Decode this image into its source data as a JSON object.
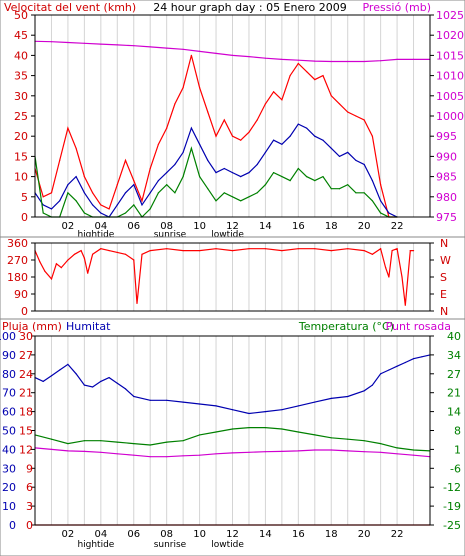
{
  "colors": {
    "background": "#ffffff",
    "frame": "#000000",
    "grid": "#d4d4d4",
    "wind_max": "#ff0000",
    "wind_avg": "#0000b0",
    "wind_min": "#008000",
    "pressure": "#d000d0",
    "direction": "#ff0000",
    "humidity": "#0000b0",
    "temperature": "#008000",
    "dewpoint": "#d000d0",
    "rain": "#ff0000",
    "label_red": "#d00000",
    "label_blue": "#0000b0",
    "label_green": "#008000",
    "label_magenta": "#d000d0"
  },
  "chart_data": [
    {
      "id": "wind",
      "type": "line",
      "title": "24 hour graph day : 05 Enero 2009",
      "ylabel_left": "Velocitat del vent (kmh)",
      "ylabel_right": "Pressió (mb)",
      "ylim_left": [
        0,
        50
      ],
      "yticks_left": [
        0,
        5,
        10,
        15,
        20,
        25,
        30,
        35,
        40,
        45,
        50
      ],
      "ylim_right": [
        975,
        1025
      ],
      "yticks_right": [
        975,
        980,
        985,
        990,
        995,
        1000,
        1005,
        1010,
        1015,
        1020,
        1025
      ],
      "xlim": [
        0,
        24
      ],
      "xticks": [
        {
          "x": 2,
          "label": "02"
        },
        {
          "x": 4,
          "label": "04"
        },
        {
          "x": 6,
          "label": "06"
        },
        {
          "x": 8,
          "label": "08"
        },
        {
          "x": 10,
          "label": "10"
        },
        {
          "x": 12,
          "label": "12"
        },
        {
          "x": 14,
          "label": "14"
        },
        {
          "x": 16,
          "label": "16"
        },
        {
          "x": 18,
          "label": "18"
        },
        {
          "x": 20,
          "label": "20"
        },
        {
          "x": 22,
          "label": "22"
        }
      ],
      "events": [
        {
          "x": 3.7,
          "label": "hightide"
        },
        {
          "x": 8.2,
          "label": "sunrise"
        },
        {
          "x": 11.7,
          "label": "lowtide"
        }
      ],
      "series": [
        {
          "key": "gust",
          "axis": "left",
          "color": "#ff0000",
          "x": [
            0,
            0.5,
            1,
            1.5,
            2,
            2.5,
            3,
            3.5,
            4,
            4.5,
            5,
            5.5,
            6,
            6.5,
            7,
            7.5,
            8,
            8.5,
            9,
            9.5,
            10,
            10.5,
            11,
            11.5,
            12,
            12.5,
            13,
            13.5,
            14,
            14.5,
            15,
            15.5,
            16,
            16.5,
            17,
            17.5,
            18,
            18.5,
            19,
            19.5,
            20,
            20.5,
            21,
            21.5,
            22
          ],
          "values": [
            12,
            5,
            6,
            14,
            22,
            17,
            10,
            6,
            3,
            2,
            8,
            14,
            9,
            4,
            12,
            18,
            22,
            28,
            32,
            40,
            32,
            26,
            20,
            24,
            20,
            19,
            21,
            24,
            28,
            31,
            29,
            35,
            38,
            36,
            34,
            35,
            30,
            28,
            26,
            25,
            24,
            20,
            8,
            0,
            0
          ]
        },
        {
          "key": "avg",
          "axis": "left",
          "color": "#0000b0",
          "x": [
            0,
            0.5,
            1,
            1.5,
            2,
            2.5,
            3,
            3.5,
            4,
            4.5,
            5,
            5.5,
            6,
            6.5,
            7,
            7.5,
            8,
            8.5,
            9,
            9.5,
            10,
            10.5,
            11,
            11.5,
            12,
            12.5,
            13,
            13.5,
            14,
            14.5,
            15,
            15.5,
            16,
            16.5,
            17,
            17.5,
            18,
            18.5,
            19,
            19.5,
            20,
            20.5,
            21,
            21.5,
            22
          ],
          "values": [
            6,
            3,
            2,
            4,
            8,
            10,
            6,
            3,
            1,
            0,
            3,
            6,
            8,
            3,
            6,
            9,
            11,
            13,
            16,
            22,
            18,
            14,
            11,
            12,
            11,
            10,
            11,
            13,
            16,
            19,
            18,
            20,
            23,
            22,
            20,
            19,
            17,
            15,
            16,
            14,
            13,
            9,
            4,
            1,
            0
          ]
        },
        {
          "key": "min",
          "axis": "left",
          "color": "#008000",
          "x": [
            0,
            0.5,
            1,
            1.5,
            2,
            2.5,
            3,
            3.5,
            4,
            4.5,
            5,
            5.5,
            6,
            6.5,
            7,
            7.5,
            8,
            8.5,
            9,
            9.5,
            10,
            10.5,
            11,
            11.5,
            12,
            12.5,
            13,
            13.5,
            14,
            14.5,
            15,
            15.5,
            16,
            16.5,
            17,
            17.5,
            18,
            18.5,
            19,
            19.5,
            20,
            20.5,
            21,
            21.5,
            22
          ],
          "values": [
            15,
            1,
            0,
            0,
            6,
            4,
            1,
            0,
            0,
            0,
            0,
            1,
            3,
            0,
            2,
            6,
            8,
            6,
            10,
            17,
            10,
            7,
            4,
            6,
            5,
            4,
            5,
            6,
            8,
            11,
            10,
            9,
            12,
            10,
            9,
            10,
            7,
            7,
            8,
            6,
            6,
            4,
            1,
            0,
            0
          ]
        },
        {
          "key": "pressure",
          "axis": "right",
          "color": "#d000d0",
          "x": [
            0,
            1,
            2,
            3,
            4,
            5,
            6,
            7,
            8,
            9,
            10,
            11,
            12,
            13,
            14,
            15,
            16,
            17,
            18,
            19,
            20,
            21,
            22,
            23,
            24
          ],
          "values": [
            1018.5,
            1018.4,
            1018.2,
            1018.0,
            1017.8,
            1017.6,
            1017.4,
            1017.1,
            1016.8,
            1016.5,
            1016.0,
            1015.5,
            1015.0,
            1014.7,
            1014.3,
            1014.0,
            1013.8,
            1013.6,
            1013.5,
            1013.5,
            1013.5,
            1013.7,
            1014.0,
            1014.0,
            1014.0
          ]
        }
      ]
    },
    {
      "id": "direction",
      "type": "line",
      "ylabel_left": "",
      "ylim": [
        0,
        360
      ],
      "yticks": [
        0,
        90,
        180,
        270,
        360
      ],
      "yticks_right_labels": [
        {
          "y": 360,
          "label": "N"
        },
        {
          "y": 270,
          "label": "W"
        },
        {
          "y": 180,
          "label": "S"
        },
        {
          "y": 90,
          "label": "E"
        },
        {
          "y": 0,
          "label": "N"
        }
      ],
      "xlim": [
        0,
        24
      ],
      "series": [
        {
          "key": "direction",
          "color": "#ff0000",
          "x": [
            0,
            0.3,
            0.6,
            1,
            1.3,
            1.6,
            2,
            2.4,
            2.8,
            3,
            3.2,
            3.5,
            4,
            4.5,
            5,
            5.5,
            6,
            6.2,
            6.5,
            7,
            8,
            9,
            10,
            11,
            12,
            13,
            14,
            15,
            16,
            17,
            18,
            19,
            20,
            20.5,
            21,
            21.3,
            21.5,
            21.7,
            22,
            22.3,
            22.5,
            22.8,
            23
          ],
          "values": [
            320,
            260,
            210,
            170,
            250,
            230,
            270,
            300,
            320,
            280,
            200,
            300,
            330,
            320,
            310,
            300,
            270,
            40,
            300,
            320,
            330,
            320,
            320,
            330,
            320,
            330,
            330,
            320,
            330,
            330,
            320,
            330,
            320,
            300,
            330,
            230,
            180,
            320,
            330,
            180,
            30,
            320,
            320
          ]
        }
      ]
    },
    {
      "id": "thermo",
      "type": "line",
      "ylabel_left": "Pluja (mm)",
      "ylabel_left2": "Humitat",
      "ylabel_right": "Temperatura (°C)",
      "ylabel_right2": "Punt rosada",
      "yticks_rain": [
        0,
        3,
        6,
        9,
        12,
        15,
        18,
        21,
        24,
        27,
        30
      ],
      "yticks_humidity": [
        0,
        10,
        20,
        30,
        40,
        50,
        60,
        70,
        80,
        90,
        100
      ],
      "ylim_humidity": [
        0,
        100
      ],
      "ylim_rain": [
        0,
        30
      ],
      "ylim_temp": [
        -25,
        40
      ],
      "yticks_temp": [
        -25,
        -19,
        -12,
        -6,
        1,
        8,
        14,
        21,
        27,
        34,
        40
      ],
      "xlim": [
        0,
        24
      ],
      "series": [
        {
          "key": "humidity",
          "axis": "humidity",
          "color": "#0000b0",
          "x": [
            0,
            0.5,
            1,
            1.5,
            2,
            2.5,
            3,
            3.5,
            4,
            4.5,
            5,
            5.5,
            6,
            7,
            8,
            9,
            10,
            11,
            12,
            13,
            14,
            15,
            16,
            17,
            18,
            19,
            20,
            20.5,
            21,
            21.5,
            22,
            22.5,
            23,
            23.5,
            24
          ],
          "values": [
            78,
            76,
            79,
            82,
            85,
            80,
            74,
            73,
            76,
            78,
            75,
            72,
            68,
            66,
            66,
            65,
            64,
            63,
            61,
            59,
            60,
            61,
            63,
            65,
            67,
            68,
            71,
            74,
            80,
            82,
            84,
            86,
            88,
            89,
            90
          ]
        },
        {
          "key": "temperature",
          "axis": "temp",
          "color": "#008000",
          "x": [
            0,
            1,
            2,
            3,
            4,
            5,
            6,
            7,
            8,
            9,
            10,
            11,
            12,
            13,
            14,
            15,
            16,
            17,
            18,
            19,
            20,
            21,
            22,
            23,
            24
          ],
          "values": [
            6,
            4.5,
            3,
            4,
            4,
            3.5,
            3,
            2.5,
            3.5,
            4,
            6,
            7,
            8,
            8.5,
            8.5,
            8,
            7,
            6,
            5,
            4.5,
            4,
            3,
            1.5,
            0.8,
            0.5
          ]
        },
        {
          "key": "dewpoint",
          "axis": "temp",
          "color": "#d000d0",
          "x": [
            0,
            1,
            2,
            3,
            4,
            5,
            6,
            7,
            8,
            9,
            10,
            11,
            12,
            13,
            14,
            15,
            16,
            17,
            18,
            19,
            20,
            21,
            22,
            23,
            24
          ],
          "values": [
            1.5,
            1,
            0.5,
            0.3,
            0,
            -0.5,
            -1,
            -1.5,
            -1.5,
            -1.2,
            -1,
            -0.5,
            -0.2,
            0,
            0.2,
            0.3,
            0.5,
            0.8,
            0.8,
            0.5,
            0.2,
            0,
            -0.5,
            -1,
            -1.5
          ]
        },
        {
          "key": "rain",
          "axis": "rain",
          "color": "#ff0000",
          "x": [
            0,
            24
          ],
          "values": [
            0,
            0
          ]
        }
      ]
    }
  ]
}
